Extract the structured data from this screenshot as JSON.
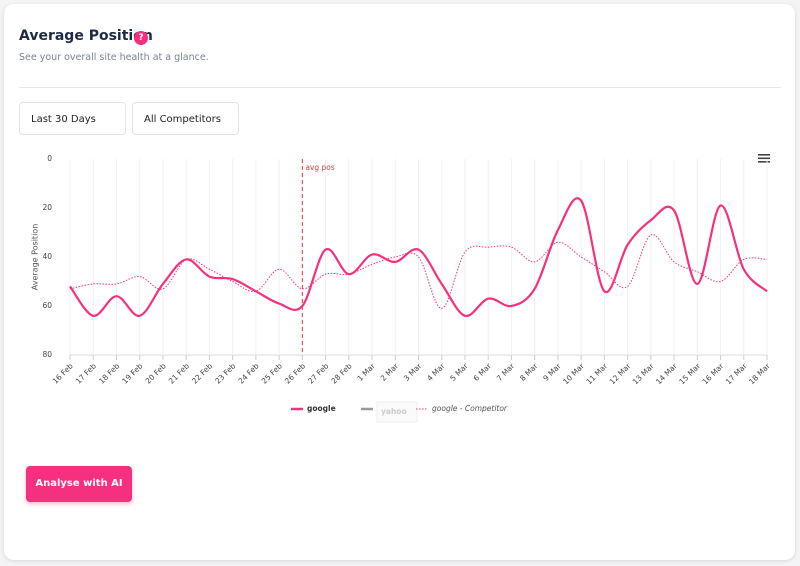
{
  "header": {
    "title": "Average Position",
    "help": "?",
    "subtitle": "See your overall site health at a glance."
  },
  "filters": [
    "Last 30 Days",
    "All Competitors"
  ],
  "chart_data": {
    "type": "line",
    "y_axis_label": "Average Position",
    "categories": [
      "16 Feb",
      "17 Feb",
      "18 Feb",
      "19 Feb",
      "20 Feb",
      "21 Feb",
      "22 Feb",
      "23 Feb",
      "24 Feb",
      "25 Feb",
      "26 Feb",
      "27 Feb",
      "28 Feb",
      "1 Mar",
      "2 Mar",
      "3 Mar",
      "4 Mar",
      "5 Mar",
      "6 Mar",
      "7 Mar",
      "8 Mar",
      "9 Mar",
      "10 Mar",
      "11 Mar",
      "12 Mar",
      "13 Mar",
      "14 Mar",
      "15 Mar",
      "16 Mar",
      "17 Mar",
      "18 Mar"
    ],
    "series": [
      {
        "name": "google",
        "color": "#f5317f",
        "style": "solid",
        "values": [
          52,
          64,
          56,
          64,
          51,
          41,
          48,
          49,
          54,
          59,
          60,
          37,
          47,
          39,
          42,
          37,
          51,
          64,
          57,
          60,
          53,
          29,
          17,
          54,
          35,
          25,
          21,
          51,
          19,
          45,
          54
        ]
      },
      {
        "name": "yahoo",
        "color": "#999999",
        "hidden": true,
        "values": [
          null,
          null,
          null,
          null,
          null,
          null,
          null,
          null,
          null,
          null,
          null,
          null,
          null,
          null,
          null,
          null,
          null,
          null,
          null,
          null,
          null,
          null,
          null,
          null,
          null,
          null,
          null,
          null,
          null,
          null,
          null
        ]
      },
      {
        "name": "google - Competitor",
        "color": "#f5317f",
        "style": "dotted",
        "values": [
          53,
          51,
          51,
          48,
          53,
          41,
          45,
          50,
          54,
          45,
          53,
          47,
          47,
          43,
          40,
          40,
          61,
          38,
          36,
          36,
          42,
          34,
          40,
          46,
          52,
          31,
          42,
          46,
          50,
          41,
          41
        ]
      }
    ],
    "ylim": [
      0,
      80
    ],
    "y_reversed": true,
    "yticks": [
      0,
      20,
      40,
      60,
      80
    ],
    "grid": true,
    "annotations": [
      {
        "text": "avg pos",
        "x": "26 Feb",
        "color": "#e53935"
      }
    ]
  },
  "button": "Analyse with AI"
}
